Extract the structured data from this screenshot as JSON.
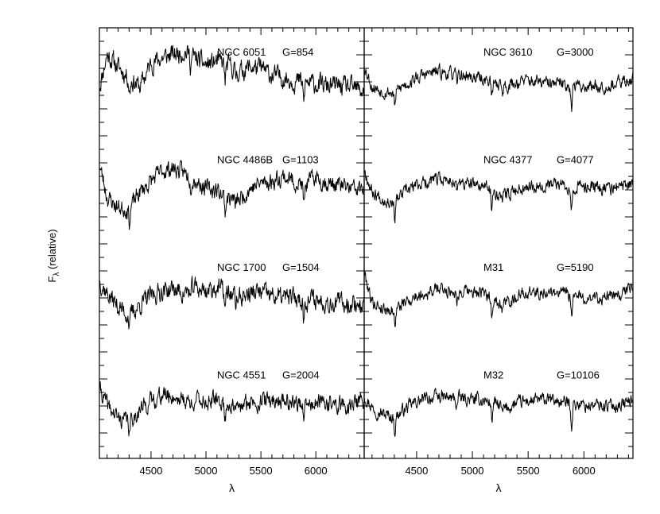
{
  "figure": {
    "ylabel_main": "F",
    "ylabel_sub": "λ",
    "ylabel_rest": " (relative)"
  },
  "chart_data": {
    "type": "line",
    "xlabel": "λ",
    "ylabel": "Fλ (relative)",
    "xlim": [
      4030,
      6440
    ],
    "xticks": [
      4500,
      5000,
      5500,
      6000
    ],
    "xtick_labels": [
      "4500",
      "5000",
      "5500",
      "6000"
    ],
    "grid": false,
    "layout": "2 columns x 4 rows of stacked spectra",
    "series": [
      {
        "name": "NGC 6051",
        "g_label": "G=854",
        "column": 0,
        "row": 0,
        "noise": 0.09,
        "seed": 11,
        "x": [
          4030,
          4100,
          4200,
          4300,
          4400,
          4500,
          4600,
          4700,
          4800,
          4900,
          5000,
          5100,
          5200,
          5300,
          5400,
          5500,
          5600,
          5700,
          5800,
          5900,
          6000,
          6100,
          6200,
          6300,
          6440
        ],
        "y": [
          0.45,
          0.82,
          0.68,
          0.55,
          0.45,
          0.72,
          0.78,
          0.82,
          0.86,
          0.78,
          0.7,
          0.74,
          0.7,
          0.62,
          0.68,
          0.66,
          0.58,
          0.56,
          0.52,
          0.5,
          0.48,
          0.46,
          0.46,
          0.44,
          0.4
        ]
      },
      {
        "name": "NGC 4486B",
        "g_label": "G=1103",
        "column": 0,
        "row": 1,
        "noise": 0.08,
        "seed": 23,
        "x": [
          4030,
          4100,
          4200,
          4300,
          4400,
          4500,
          4600,
          4700,
          4800,
          4900,
          5000,
          5100,
          5200,
          5300,
          5400,
          5500,
          5600,
          5700,
          5800,
          5900,
          6000,
          6100,
          6200,
          6300,
          6440
        ],
        "y": [
          0.8,
          0.42,
          0.3,
          0.28,
          0.48,
          0.6,
          0.72,
          0.75,
          0.7,
          0.62,
          0.52,
          0.5,
          0.42,
          0.38,
          0.52,
          0.58,
          0.6,
          0.66,
          0.6,
          0.55,
          0.65,
          0.58,
          0.56,
          0.52,
          0.5
        ]
      },
      {
        "name": "NGC 1700",
        "g_label": "G=1504",
        "column": 0,
        "row": 2,
        "noise": 0.09,
        "seed": 37,
        "x": [
          4030,
          4100,
          4200,
          4300,
          4400,
          4500,
          4600,
          4700,
          4800,
          4900,
          5000,
          5100,
          5200,
          5300,
          5400,
          5500,
          5600,
          5700,
          5800,
          5900,
          6000,
          6100,
          6200,
          6300,
          6440
        ],
        "y": [
          0.7,
          0.55,
          0.4,
          0.3,
          0.42,
          0.52,
          0.58,
          0.6,
          0.55,
          0.62,
          0.58,
          0.62,
          0.56,
          0.5,
          0.55,
          0.56,
          0.52,
          0.5,
          0.5,
          0.48,
          0.48,
          0.46,
          0.44,
          0.44,
          0.42
        ]
      },
      {
        "name": "NGC 4551",
        "g_label": "G=2004",
        "column": 0,
        "row": 3,
        "noise": 0.08,
        "seed": 41,
        "x": [
          4030,
          4100,
          4200,
          4300,
          4400,
          4500,
          4600,
          4700,
          4800,
          4900,
          5000,
          5100,
          5200,
          5300,
          5400,
          5500,
          5600,
          5700,
          5800,
          5900,
          6000,
          6100,
          6200,
          6300,
          6440
        ],
        "y": [
          0.7,
          0.5,
          0.35,
          0.32,
          0.45,
          0.55,
          0.62,
          0.6,
          0.56,
          0.56,
          0.55,
          0.55,
          0.52,
          0.46,
          0.54,
          0.55,
          0.56,
          0.56,
          0.54,
          0.5,
          0.52,
          0.52,
          0.5,
          0.5,
          0.56
        ]
      },
      {
        "name": "NGC 3610",
        "g_label": "G=3000",
        "column": 1,
        "row": 0,
        "noise": 0.06,
        "seed": 53,
        "x": [
          4030,
          4100,
          4200,
          4300,
          4400,
          4500,
          4600,
          4700,
          4800,
          4900,
          5000,
          5100,
          5200,
          5300,
          5400,
          5500,
          5600,
          5700,
          5800,
          5900,
          6000,
          6100,
          6200,
          6300,
          6440
        ],
        "y": [
          0.7,
          0.45,
          0.4,
          0.38,
          0.48,
          0.55,
          0.6,
          0.62,
          0.6,
          0.58,
          0.56,
          0.54,
          0.5,
          0.46,
          0.5,
          0.52,
          0.5,
          0.48,
          0.48,
          0.46,
          0.46,
          0.46,
          0.46,
          0.48,
          0.55
        ]
      },
      {
        "name": "NGC 4377",
        "g_label": "G=4077",
        "column": 1,
        "row": 1,
        "noise": 0.06,
        "seed": 67,
        "x": [
          4030,
          4100,
          4200,
          4300,
          4400,
          4500,
          4600,
          4700,
          4800,
          4900,
          5000,
          5100,
          5200,
          5300,
          5400,
          5500,
          5600,
          5700,
          5800,
          5900,
          6000,
          6100,
          6200,
          6300,
          6440
        ],
        "y": [
          0.75,
          0.48,
          0.4,
          0.36,
          0.48,
          0.56,
          0.6,
          0.62,
          0.62,
          0.58,
          0.56,
          0.54,
          0.48,
          0.44,
          0.52,
          0.55,
          0.56,
          0.56,
          0.56,
          0.54,
          0.54,
          0.54,
          0.52,
          0.52,
          0.58
        ]
      },
      {
        "name": "M31",
        "g_label": "G=5190",
        "column": 1,
        "row": 2,
        "noise": 0.06,
        "seed": 79,
        "x": [
          4030,
          4100,
          4200,
          4300,
          4400,
          4500,
          4600,
          4700,
          4800,
          4900,
          5000,
          5100,
          5200,
          5300,
          5400,
          5500,
          5600,
          5700,
          5800,
          5900,
          6000,
          6100,
          6200,
          6300,
          6440
        ],
        "y": [
          0.8,
          0.45,
          0.38,
          0.36,
          0.45,
          0.52,
          0.56,
          0.6,
          0.58,
          0.56,
          0.56,
          0.54,
          0.48,
          0.44,
          0.52,
          0.56,
          0.56,
          0.56,
          0.56,
          0.52,
          0.5,
          0.5,
          0.5,
          0.52,
          0.62
        ]
      },
      {
        "name": "M32",
        "g_label": "G=10106",
        "column": 1,
        "row": 3,
        "noise": 0.06,
        "seed": 97,
        "x": [
          4030,
          4100,
          4200,
          4300,
          4400,
          4500,
          4600,
          4700,
          4800,
          4900,
          5000,
          5100,
          5200,
          5300,
          5400,
          5500,
          5600,
          5700,
          5800,
          5900,
          6000,
          6100,
          6200,
          6300,
          6440
        ],
        "y": [
          0.62,
          0.48,
          0.4,
          0.36,
          0.46,
          0.54,
          0.58,
          0.6,
          0.58,
          0.58,
          0.56,
          0.56,
          0.52,
          0.46,
          0.52,
          0.55,
          0.56,
          0.56,
          0.54,
          0.52,
          0.5,
          0.5,
          0.5,
          0.5,
          0.56
        ]
      }
    ],
    "absorption_features": [
      {
        "x": 4305,
        "depth": 0.16
      },
      {
        "x": 4860,
        "depth": 0.1
      },
      {
        "x": 5175,
        "depth": 0.2
      },
      {
        "x": 5270,
        "depth": 0.08
      },
      {
        "x": 5890,
        "depth": 0.24
      }
    ]
  }
}
